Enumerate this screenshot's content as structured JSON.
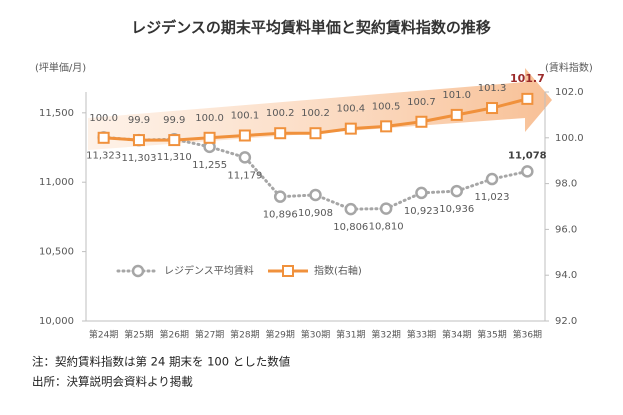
{
  "chart_data": {
    "type": "line",
    "title": "レジデンスの期末平均賃料単価と契約賃料指数の推移",
    "y_label": "(坪単価/月)",
    "y2_label": "(賃料指数)",
    "categories": [
      "第24期",
      "第25期",
      "第26期",
      "第27期",
      "第28期",
      "第29期",
      "第30期",
      "第31期",
      "第32期",
      "第33期",
      "第34期",
      "第35期",
      "第36期"
    ],
    "series": [
      {
        "name": "レジデンス平均賃料",
        "color": "#a6a6a6",
        "values": [
          11323,
          11303,
          11310,
          11255,
          11179,
          10896,
          10908,
          10806,
          10810,
          10923,
          10936,
          11023,
          11078
        ],
        "value_labels": [
          "11,323",
          "11,303",
          "11,310",
          "11,255",
          "11,179",
          "10,896",
          "10,908",
          "10,806",
          "10,810",
          "10,923",
          "10,936",
          "11,023",
          "11,078"
        ]
      },
      {
        "name": "指数(右軸)",
        "color": "#f0913c",
        "axis": "y2",
        "values": [
          100.0,
          99.9,
          99.9,
          100.0,
          100.1,
          100.2,
          100.2,
          100.4,
          100.5,
          100.7,
          101.0,
          101.3,
          101.7
        ],
        "value_labels": [
          "100.0",
          "99.9",
          "99.9",
          "100.0",
          "100.1",
          "100.2",
          "100.2",
          "100.4",
          "100.5",
          "100.7",
          "101.0",
          "101.3",
          "101.7"
        ]
      }
    ],
    "ylim": [
      10000,
      11650
    ],
    "yticks": [
      {
        "value": 10000,
        "label": "10,000"
      },
      {
        "value": 10500,
        "label": "10,500"
      },
      {
        "value": 11000,
        "label": "11,000"
      },
      {
        "value": 11500,
        "label": "11,500"
      }
    ],
    "y2lim": [
      92,
      102
    ],
    "y2ticks": [
      {
        "value": 92,
        "label": "92.0"
      },
      {
        "value": 94,
        "label": "94.0"
      },
      {
        "value": 96,
        "label": "96.0"
      },
      {
        "value": 98,
        "label": "98.0"
      },
      {
        "value": 100,
        "label": "100.0"
      },
      {
        "value": 102,
        "label": "102.0"
      }
    ],
    "notes": [
      "注：契約賃料指数は第 24 期末を 100 とした数値",
      "出所：決算説明会資料より掲載"
    ]
  }
}
